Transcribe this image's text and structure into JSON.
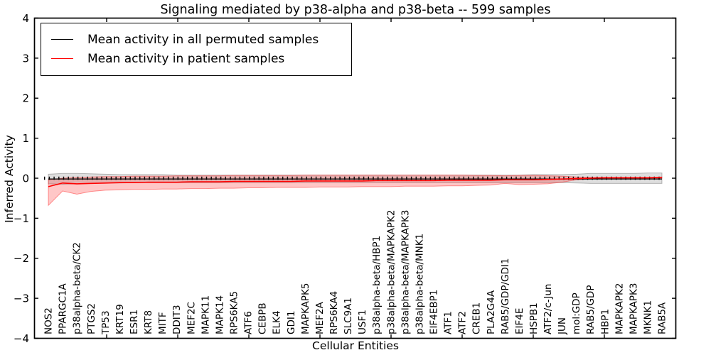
{
  "title": "Signaling mediated by p38-alpha and p38-beta -- 599 samples",
  "legend": {
    "items": [
      {
        "label": "Mean activity in all permuted samples",
        "color": "#000000"
      },
      {
        "label": "Mean activity in patient samples",
        "color": "#ff0000"
      }
    ]
  },
  "axes": {
    "ylabel": "Inferred Activity",
    "xlabel": "Cellular Entities",
    "ytick_labels": [
      "4",
      "3",
      "2",
      "1",
      "0",
      "−1",
      "−2",
      "−3",
      "−4"
    ]
  },
  "chart_data": {
    "type": "line",
    "title": "Signaling mediated by p38-alpha and p38-beta -- 599 samples",
    "xlabel": "Cellular Entities",
    "ylabel": "Inferred Activity",
    "ylim": [
      -4,
      4
    ],
    "yticks": [
      4,
      3,
      2,
      1,
      0,
      -1,
      -2,
      -3,
      -4
    ],
    "grid": false,
    "legend_position": "upper left",
    "zero_reference_line": true,
    "categories": [
      "NOS2",
      "PPARGC1A",
      "p38alpha-beta/CK2",
      "PTGS2",
      "TP53",
      "KRT19",
      "ESR1",
      "KRT8",
      "MITF",
      "DDIT3",
      "MEF2C",
      "MAPK11",
      "MAPK14",
      "RPS6KA5",
      "ATF6",
      "CEBPB",
      "ELK4",
      "GDI1",
      "MAPKAPK5",
      "MEF2A",
      "RPS6KA4",
      "SLC9A1",
      "USF1",
      "p38alpha-beta/HBP1",
      "p38alpha-beta/MAPKAPK2",
      "p38alpha-beta/MAPKAPK3",
      "p38alpha-beta/MNK1",
      "EIF4EBP1",
      "ATF1",
      "ATF2",
      "CREB1",
      "PLA2G4A",
      "RAB5/GDP/GDI1",
      "EIF4E",
      "HSPB1",
      "ATF2/c-Jun",
      "JUN",
      "mol:GDP",
      "RAB5/GDP",
      "HBP1",
      "MAPKAPK2",
      "MAPKAPK3",
      "MKNK1",
      "RAB5A"
    ],
    "series": [
      {
        "name": "Mean activity in all permuted samples",
        "color": "#000000",
        "band_fill": "rgba(0,0,0,0.13)",
        "band_edge": "rgba(0,0,0,0.25)",
        "values": [
          -0.02,
          -0.02,
          -0.02,
          -0.02,
          -0.02,
          -0.02,
          -0.02,
          -0.02,
          -0.02,
          -0.02,
          -0.02,
          -0.02,
          -0.02,
          -0.02,
          -0.02,
          -0.02,
          -0.02,
          -0.02,
          -0.02,
          -0.02,
          -0.02,
          -0.02,
          -0.02,
          -0.02,
          -0.02,
          -0.02,
          -0.02,
          -0.02,
          -0.02,
          -0.02,
          -0.02,
          -0.02,
          -0.02,
          -0.02,
          -0.02,
          -0.02,
          -0.02,
          -0.02,
          -0.02,
          -0.02,
          -0.02,
          -0.02,
          -0.02,
          -0.02
        ],
        "band_upper": [
          0.1,
          0.12,
          0.12,
          0.11,
          0.1,
          0.09,
          0.09,
          0.09,
          0.09,
          0.08,
          0.08,
          0.08,
          0.08,
          0.08,
          0.08,
          0.08,
          0.08,
          0.08,
          0.08,
          0.08,
          0.08,
          0.08,
          0.08,
          0.08,
          0.08,
          0.08,
          0.08,
          0.08,
          0.08,
          0.08,
          0.08,
          0.08,
          0.08,
          0.08,
          0.09,
          0.09,
          0.09,
          0.1,
          0.12,
          0.12,
          0.12,
          0.12,
          0.13,
          0.13
        ],
        "band_lower": [
          -0.14,
          -0.15,
          -0.14,
          -0.13,
          -0.12,
          -0.12,
          -0.11,
          -0.11,
          -0.11,
          -0.11,
          -0.11,
          -0.11,
          -0.11,
          -0.11,
          -0.11,
          -0.11,
          -0.11,
          -0.11,
          -0.11,
          -0.11,
          -0.11,
          -0.11,
          -0.11,
          -0.11,
          -0.11,
          -0.11,
          -0.11,
          -0.11,
          -0.11,
          -0.11,
          -0.11,
          -0.11,
          -0.11,
          -0.11,
          -0.11,
          -0.11,
          -0.11,
          -0.12,
          -0.13,
          -0.13,
          -0.13,
          -0.13,
          -0.13,
          -0.13
        ]
      },
      {
        "name": "Mean activity in patient samples",
        "color": "#ff0000",
        "band_fill": "rgba(255,0,0,0.22)",
        "band_edge": "rgba(255,0,0,0.40)",
        "values": [
          -0.21,
          -0.12,
          -0.14,
          -0.13,
          -0.12,
          -0.11,
          -0.11,
          -0.1,
          -0.1,
          -0.1,
          -0.09,
          -0.09,
          -0.09,
          -0.08,
          -0.08,
          -0.08,
          -0.08,
          -0.08,
          -0.07,
          -0.07,
          -0.07,
          -0.07,
          -0.07,
          -0.06,
          -0.06,
          -0.06,
          -0.06,
          -0.06,
          -0.05,
          -0.05,
          -0.05,
          -0.05,
          -0.04,
          -0.04,
          -0.04,
          -0.03,
          -0.02,
          -0.01,
          0.0,
          0.01,
          0.01,
          0.01,
          0.01,
          0.02
        ],
        "band_upper": [
          -0.04,
          0.0,
          0.02,
          0.03,
          0.04,
          0.04,
          0.05,
          0.05,
          0.05,
          0.06,
          0.06,
          0.06,
          0.06,
          0.07,
          0.07,
          0.07,
          0.07,
          0.07,
          0.08,
          0.08,
          0.08,
          0.08,
          0.08,
          0.08,
          0.08,
          0.08,
          0.08,
          0.08,
          0.08,
          0.08,
          0.07,
          0.07,
          0.06,
          0.07,
          0.07,
          0.06,
          0.05,
          0.03,
          0.02,
          0.02,
          0.02,
          0.02,
          0.02,
          0.03
        ],
        "band_lower": [
          -0.68,
          -0.32,
          -0.4,
          -0.33,
          -0.3,
          -0.29,
          -0.28,
          -0.28,
          -0.27,
          -0.27,
          -0.26,
          -0.26,
          -0.25,
          -0.25,
          -0.24,
          -0.24,
          -0.23,
          -0.23,
          -0.23,
          -0.22,
          -0.22,
          -0.22,
          -0.21,
          -0.21,
          -0.21,
          -0.2,
          -0.2,
          -0.2,
          -0.19,
          -0.19,
          -0.18,
          -0.17,
          -0.13,
          -0.16,
          -0.15,
          -0.14,
          -0.1,
          -0.04,
          -0.02,
          -0.01,
          -0.01,
          -0.01,
          -0.01,
          0.0
        ]
      }
    ]
  }
}
